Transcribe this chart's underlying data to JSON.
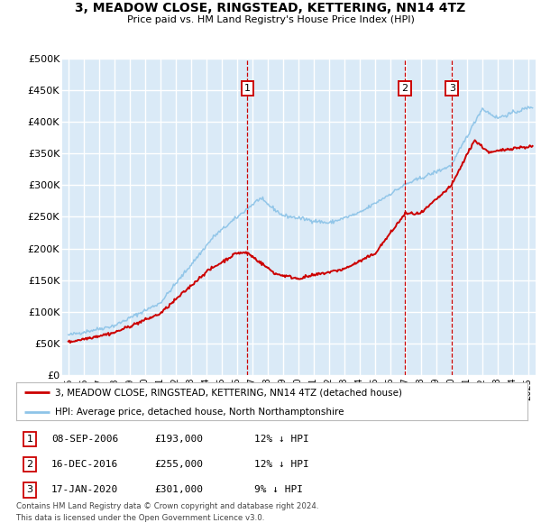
{
  "title": "3, MEADOW CLOSE, RINGSTEAD, KETTERING, NN14 4TZ",
  "subtitle": "Price paid vs. HM Land Registry's House Price Index (HPI)",
  "legend_line1": "3, MEADOW CLOSE, RINGSTEAD, KETTERING, NN14 4TZ (detached house)",
  "legend_line2": "HPI: Average price, detached house, North Northamptonshire",
  "footer1": "Contains HM Land Registry data © Crown copyright and database right 2024.",
  "footer2": "This data is licensed under the Open Government Licence v3.0.",
  "sale_events": [
    {
      "num": 1,
      "date": "08-SEP-2006",
      "price": "£193,000",
      "pct": "12% ↓ HPI",
      "x_year": 2006.69
    },
    {
      "num": 2,
      "date": "16-DEC-2016",
      "price": "£255,000",
      "pct": "12% ↓ HPI",
      "x_year": 2016.96
    },
    {
      "num": 3,
      "date": "17-JAN-2020",
      "price": "£301,000",
      "pct": "9% ↓ HPI",
      "x_year": 2020.04
    }
  ],
  "hpi_color": "#8ec4e8",
  "price_color": "#cc0000",
  "plot_bg": "#daeaf7",
  "grid_color": "#ffffff",
  "ylim": [
    0,
    500000
  ],
  "xlim_start": 1994.6,
  "xlim_end": 2025.5
}
